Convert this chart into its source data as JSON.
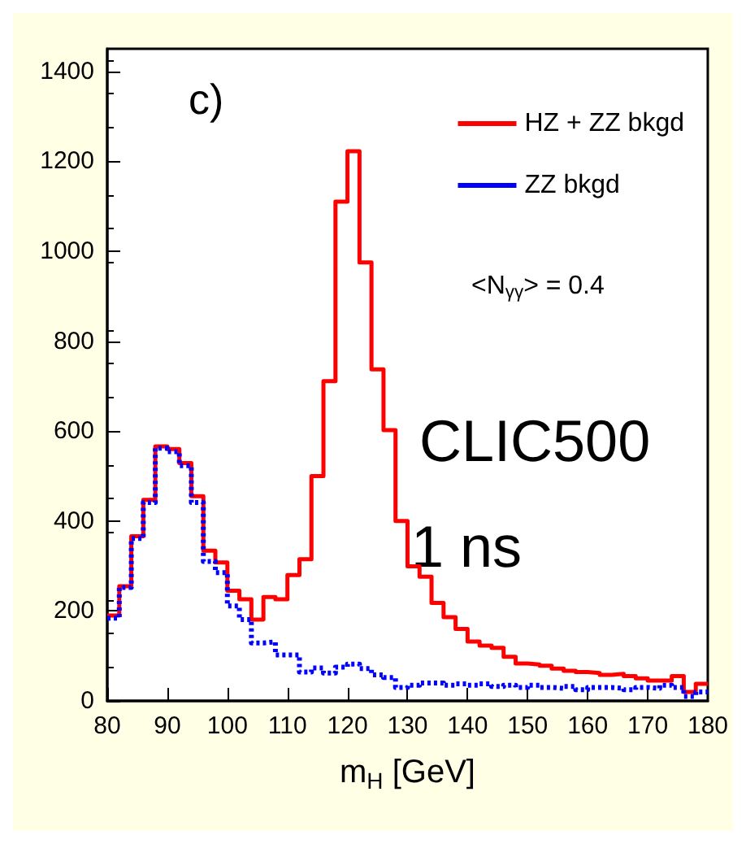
{
  "chart_data": {
    "type": "histogram",
    "xlabel": "m$_{H}$ [GeV]",
    "bins": [
      80,
      82,
      84,
      86,
      88,
      90,
      92,
      94,
      96,
      98,
      100,
      102,
      104,
      106,
      108,
      110,
      112,
      114,
      116,
      118,
      120,
      122,
      124,
      126,
      128,
      130,
      132,
      134,
      136,
      138,
      140,
      142,
      144,
      146,
      148,
      150,
      152,
      154,
      156,
      158,
      160,
      162,
      164,
      166,
      168,
      170,
      172,
      174,
      176,
      178,
      180
    ],
    "series": [
      {
        "name": "HZ + ZZ bkgd",
        "color": "#ff0000",
        "line_style": "solid",
        "values": [
          190,
          255,
          366,
          447,
          566,
          560,
          529,
          455,
          334,
          308,
          245,
          226,
          181,
          231,
          226,
          280,
          315,
          500,
          711,
          1110,
          1222,
          975,
          737,
          602,
          400,
          299,
          276,
          218,
          186,
          160,
          132,
          123,
          118,
          98,
          83,
          81,
          78,
          72,
          67,
          64,
          62,
          58,
          60,
          55,
          50,
          45,
          45,
          55,
          20,
          38
        ]
      },
      {
        "name": "ZZ bkgd",
        "color": "#0000ff",
        "line_style": "dotted",
        "values": [
          184,
          252,
          361,
          441,
          562,
          554,
          523,
          441,
          310,
          285,
          211,
          181,
          129,
          131,
          102,
          102,
          64,
          73,
          62,
          75,
          82,
          72,
          58,
          52,
          30,
          35,
          40,
          40,
          35,
          38,
          35,
          38,
          32,
          35,
          30,
          35,
          30,
          28,
          32,
          25,
          30,
          30,
          28,
          25,
          30,
          28,
          35,
          30,
          10,
          20
        ]
      }
    ],
    "xlim": [
      80,
      180
    ],
    "xticks": [
      80,
      90,
      100,
      110,
      120,
      130,
      140,
      150,
      160,
      170,
      180
    ],
    "ylim": [
      0,
      1450
    ],
    "yticks": [
      0,
      200,
      400,
      600,
      800,
      1000,
      1200,
      1400
    ],
    "grid": false,
    "legend": "top right",
    "annotations": [
      "c)",
      "<N$_{γγ}$> = 0.4",
      "CLIC500",
      "1 ns"
    ]
  }
}
